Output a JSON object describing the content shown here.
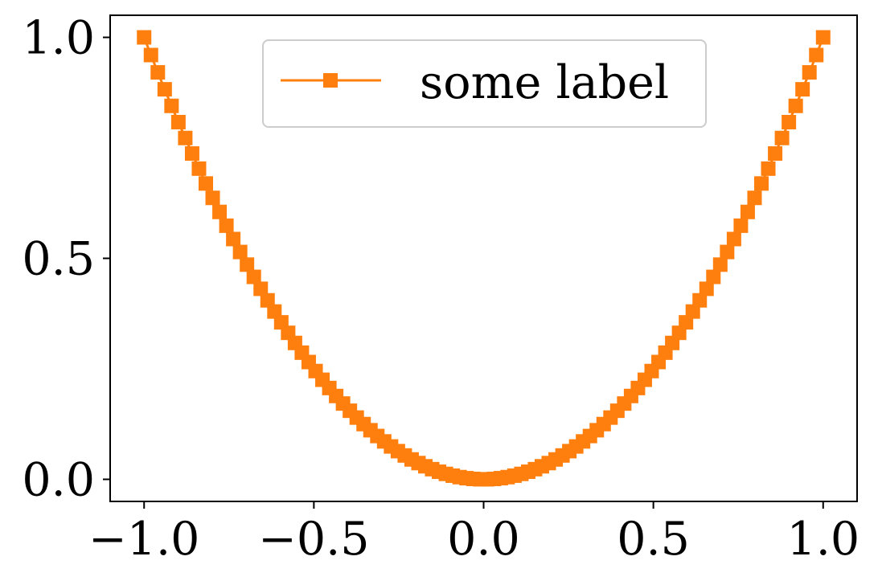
{
  "chart_data": {
    "type": "line",
    "title": "",
    "xlabel": "",
    "ylabel": "",
    "xlim": [
      -1.1,
      1.1
    ],
    "ylim": [
      -0.05,
      1.05
    ],
    "x_ticks": [
      -1.0,
      -0.5,
      0.0,
      0.5,
      1.0
    ],
    "x_tick_labels": [
      "−1.0",
      "−0.5",
      "0.0",
      "0.5",
      "1.0"
    ],
    "y_ticks": [
      0.0,
      0.5,
      1.0
    ],
    "y_tick_labels": [
      "0.0",
      "0.5",
      "1.0"
    ],
    "grid": false,
    "legend_position": "top-center",
    "series": [
      {
        "name": "some label",
        "color": "#ff7f0e",
        "marker": "square",
        "x": [
          -1.0,
          -0.9798,
          -0.9596,
          -0.9394,
          -0.9192,
          -0.899,
          -0.8788,
          -0.8586,
          -0.8384,
          -0.8182,
          -0.798,
          -0.7778,
          -0.7576,
          -0.7374,
          -0.7172,
          -0.697,
          -0.6768,
          -0.6566,
          -0.6364,
          -0.6162,
          -0.596,
          -0.5758,
          -0.5556,
          -0.5354,
          -0.5152,
          -0.4949,
          -0.4747,
          -0.4545,
          -0.4343,
          -0.4141,
          -0.3939,
          -0.3737,
          -0.3535,
          -0.3333,
          -0.3131,
          -0.2929,
          -0.2727,
          -0.2525,
          -0.2323,
          -0.2121,
          -0.1919,
          -0.1717,
          -0.1515,
          -0.1313,
          -0.1111,
          -0.0909,
          -0.0707,
          -0.0505,
          -0.0303,
          -0.0101,
          0.0101,
          0.0303,
          0.0505,
          0.0707,
          0.0909,
          0.1111,
          0.1313,
          0.1515,
          0.1717,
          0.1919,
          0.2121,
          0.2323,
          0.2525,
          0.2727,
          0.2929,
          0.3131,
          0.3333,
          0.3535,
          0.3737,
          0.3939,
          0.4141,
          0.4343,
          0.4545,
          0.4747,
          0.4949,
          0.5152,
          0.5354,
          0.5556,
          0.5758,
          0.596,
          0.6162,
          0.6364,
          0.6566,
          0.6768,
          0.697,
          0.7172,
          0.7374,
          0.7576,
          0.7778,
          0.798,
          0.8182,
          0.8384,
          0.8586,
          0.8788,
          0.899,
          0.9192,
          0.9394,
          0.9596,
          0.9798,
          1.0
        ],
        "y": [
          1.0,
          0.96,
          0.9208,
          0.8825,
          0.845,
          0.8082,
          0.7723,
          0.7372,
          0.703,
          0.6694,
          0.6368,
          0.605,
          0.5739,
          0.5437,
          0.5144,
          0.4858,
          0.4581,
          0.4311,
          0.405,
          0.3797,
          0.3552,
          0.3315,
          0.3086,
          0.2866,
          0.2654,
          0.245,
          0.2253,
          0.2066,
          0.1886,
          0.1715,
          0.1552,
          0.1397,
          0.125,
          0.1111,
          0.098,
          0.0858,
          0.0744,
          0.0638,
          0.054,
          0.045,
          0.0368,
          0.0295,
          0.023,
          0.0172,
          0.0123,
          0.0083,
          0.005,
          0.0026,
          0.0009,
          0.0001,
          0.0001,
          0.0009,
          0.0026,
          0.005,
          0.0083,
          0.0123,
          0.0172,
          0.023,
          0.0295,
          0.0368,
          0.045,
          0.054,
          0.0638,
          0.0744,
          0.0858,
          0.098,
          0.1111,
          0.125,
          0.1397,
          0.1552,
          0.1715,
          0.1886,
          0.2066,
          0.2253,
          0.245,
          0.2654,
          0.2866,
          0.3086,
          0.3315,
          0.3552,
          0.3797,
          0.405,
          0.4311,
          0.4581,
          0.4858,
          0.5144,
          0.5437,
          0.5739,
          0.605,
          0.6368,
          0.6694,
          0.703,
          0.7372,
          0.7723,
          0.8082,
          0.845,
          0.8825,
          0.9208,
          0.96,
          1.0
        ]
      }
    ]
  }
}
